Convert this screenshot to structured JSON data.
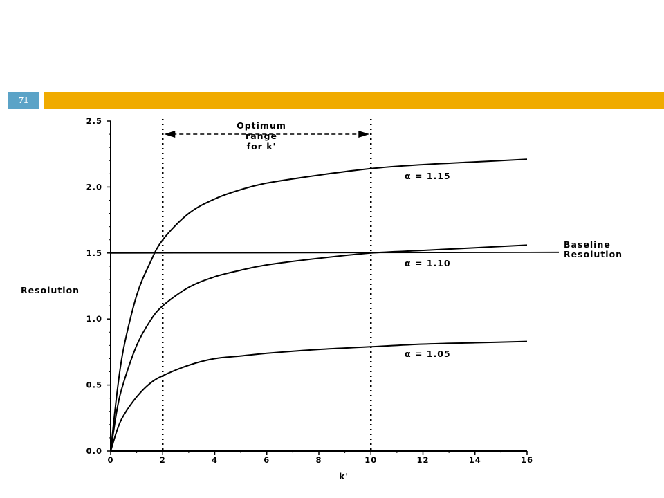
{
  "slide": {
    "number": "71",
    "accent_color": "#f0ab00",
    "number_bg_color": "#5ba3c7"
  },
  "chart_data": {
    "type": "line",
    "xlabel": "k'",
    "ylabel": "Resolution",
    "xlim": [
      0,
      16
    ],
    "ylim": [
      0,
      2.5
    ],
    "x_ticks": [
      "0",
      "2",
      "4",
      "6",
      "8",
      "10",
      "12",
      "14",
      "16"
    ],
    "y_ticks": [
      "0.0",
      "0.5",
      "1.0",
      "1.5",
      "2.0",
      "2.5"
    ],
    "grid": false,
    "series": [
      {
        "name": "α = 1.15",
        "x": [
          0,
          0.25,
          0.5,
          1,
          1.5,
          2,
          3,
          4,
          5,
          6,
          8,
          10,
          12,
          14,
          16
        ],
        "y": [
          0,
          0.45,
          0.78,
          1.18,
          1.42,
          1.6,
          1.8,
          1.91,
          1.98,
          2.03,
          2.09,
          2.14,
          2.17,
          2.19,
          2.21
        ]
      },
      {
        "name": "α = 1.10",
        "x": [
          0,
          0.25,
          0.5,
          1,
          1.5,
          2,
          3,
          4,
          5,
          6,
          8,
          10,
          12,
          14,
          16
        ],
        "y": [
          0,
          0.32,
          0.52,
          0.8,
          0.98,
          1.1,
          1.24,
          1.32,
          1.37,
          1.41,
          1.46,
          1.5,
          1.52,
          1.54,
          1.56
        ]
      },
      {
        "name": "α = 1.05",
        "x": [
          0,
          0.25,
          0.5,
          1,
          1.5,
          2,
          3,
          4,
          5,
          6,
          8,
          10,
          12,
          14,
          16
        ],
        "y": [
          0,
          0.16,
          0.27,
          0.41,
          0.51,
          0.57,
          0.65,
          0.7,
          0.72,
          0.74,
          0.77,
          0.79,
          0.81,
          0.82,
          0.83
        ]
      }
    ],
    "baseline": {
      "value": 1.5,
      "label_line1": "Baseline",
      "label_line2": "Resolution"
    },
    "optimum_range": {
      "from": 2,
      "to": 10,
      "label_lines": [
        "Optimum",
        "range",
        "for k'"
      ]
    }
  }
}
